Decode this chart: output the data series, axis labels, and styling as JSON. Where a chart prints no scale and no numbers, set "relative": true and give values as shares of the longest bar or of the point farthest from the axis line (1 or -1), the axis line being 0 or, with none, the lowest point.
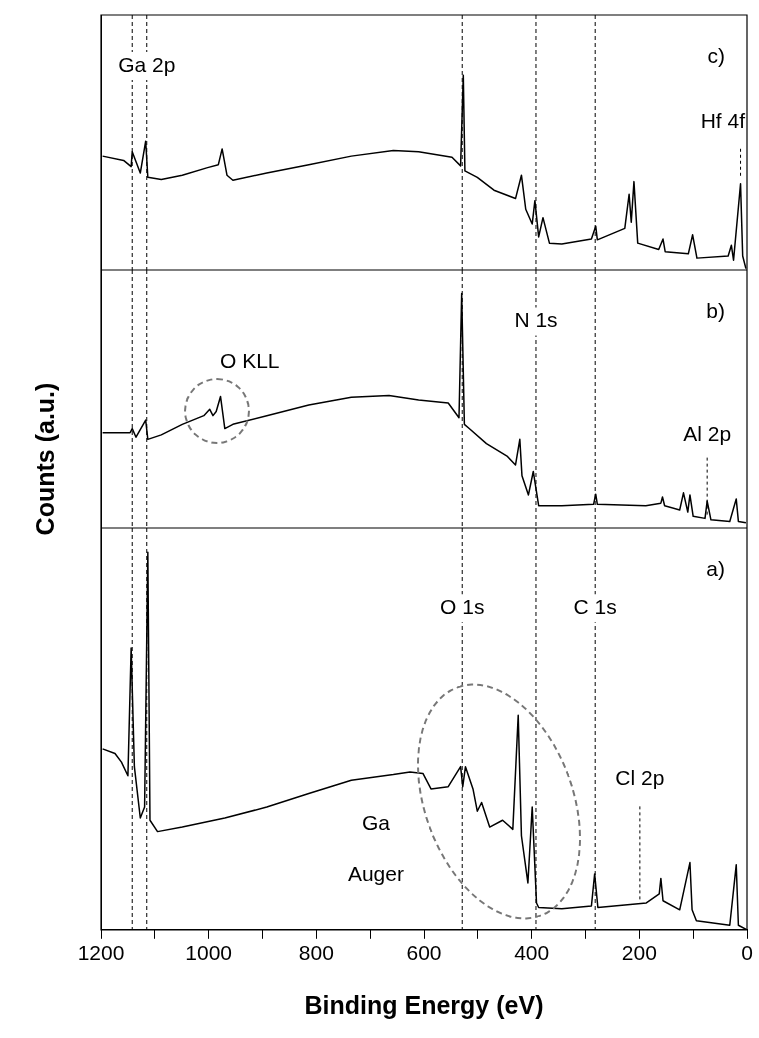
{
  "chart_data": [
    {
      "type": "line",
      "relative": true,
      "color": "#000000",
      "tick_labels": false,
      "xlim": [
        1200,
        0
      ],
      "x": [
        1197,
        1158,
        1144,
        1142,
        1127,
        1117,
        1113,
        1088,
        1049,
        1002,
        982,
        975,
        966,
        955,
        892,
        814,
        735,
        657,
        610,
        548,
        532,
        527,
        524,
        501,
        470,
        430,
        419,
        411,
        399,
        394,
        387,
        379,
        367,
        344,
        289,
        281,
        278,
        227,
        219,
        215,
        210,
        203,
        164,
        156,
        152,
        109,
        101,
        93,
        35,
        29,
        25,
        12,
        8,
        2
      ],
      "values": [
        0.585,
        0.563,
        0.531,
        0.607,
        0.498,
        0.662,
        0.476,
        0.465,
        0.487,
        0.526,
        0.541,
        0.622,
        0.487,
        0.461,
        0.498,
        0.541,
        0.585,
        0.614,
        0.607,
        0.579,
        0.535,
        1,
        0.509,
        0.476,
        0.41,
        0.367,
        0.487,
        0.312,
        0.236,
        0.356,
        0.17,
        0.269,
        0.138,
        0.133,
        0.159,
        0.225,
        0.155,
        0.214,
        0.389,
        0.245,
        0.454,
        0.138,
        0.105,
        0.159,
        0.094,
        0.083,
        0.181,
        0.061,
        0.072,
        0.127,
        0.05,
        0.443,
        0.072,
        0.007
      ],
      "ref_lines": [
        {
          "axis": "x",
          "value": 1142,
          "line_style": "dashed"
        },
        {
          "axis": "x",
          "value": 1115,
          "label": "Ga 2p",
          "line_style": "dashed"
        },
        {
          "axis": "x",
          "value": 529,
          "line_style": "dashed"
        },
        {
          "axis": "x",
          "value": 392,
          "line_style": "dashed"
        },
        {
          "axis": "x",
          "value": 282,
          "line_style": "dashed"
        }
      ],
      "annotations": [
        "c)",
        {
          "text": "Hf 4f",
          "x": 12,
          "y": 0.443
        }
      ]
    },
    {
      "type": "line",
      "relative": true,
      "color": "#000000",
      "tick_labels": false,
      "xlim": [
        1200,
        0
      ],
      "ylabel": "Counts (a.u.)",
      "x": [
        1197,
        1146,
        1142,
        1135,
        1117,
        1113,
        1088,
        1049,
        1009,
        998,
        992,
        986,
        978,
        970,
        955,
        892,
        814,
        735,
        665,
        610,
        555,
        535,
        530,
        525,
        516,
        484,
        445,
        430,
        422,
        418,
        406,
        397,
        387,
        344,
        285,
        281,
        278,
        188,
        160,
        157,
        153,
        125,
        118,
        110,
        106,
        100,
        78,
        74,
        67,
        32,
        20,
        16,
        2
      ],
      "values": [
        0.406,
        0.406,
        0.424,
        0.387,
        0.46,
        0.378,
        0.397,
        0.442,
        0.479,
        0.506,
        0.479,
        0.497,
        0.561,
        0.424,
        0.442,
        0.479,
        0.524,
        0.557,
        0.565,
        0.546,
        0.533,
        0.47,
        1,
        0.442,
        0.424,
        0.36,
        0.305,
        0.269,
        0.378,
        0.223,
        0.141,
        0.241,
        0.095,
        0.095,
        0.101,
        0.144,
        0.101,
        0.095,
        0.106,
        0.132,
        0.095,
        0.077,
        0.15,
        0.068,
        0.141,
        0.05,
        0.041,
        0.115,
        0.035,
        0.028,
        0.124,
        0.028,
        0.022
      ],
      "ref_lines": [
        {
          "axis": "x",
          "value": 1142,
          "line_style": "dashed"
        },
        {
          "axis": "x",
          "value": 1115,
          "line_style": "dashed"
        },
        {
          "axis": "x",
          "value": 529,
          "line_style": "dashed"
        },
        {
          "axis": "x",
          "value": 392,
          "label": "N 1s",
          "line_style": "dashed"
        },
        {
          "axis": "x",
          "value": 282,
          "line_style": "dashed"
        }
      ],
      "annotations": [
        "b)",
        {
          "text": "O KLL",
          "x": 985,
          "y": 0.5
        },
        {
          "text": "Al 2p",
          "x": 74,
          "y": 0.04
        }
      ]
    },
    {
      "type": "line",
      "relative": true,
      "color": "#000000",
      "tick_labels": "x",
      "xlim": [
        1200,
        0
      ],
      "xlabel": "Binding Energy (eV)",
      "xticks": [
        1200,
        {
          "value": 1100,
          "label": null
        },
        1000,
        {
          "value": 900,
          "label": null
        },
        800,
        {
          "value": 700,
          "label": null
        },
        600,
        {
          "value": 500,
          "label": null
        },
        400,
        {
          "value": 300,
          "label": null
        },
        200,
        {
          "value": 100,
          "label": null
        },
        0
      ],
      "x": [
        1197,
        1174,
        1162,
        1150,
        1144,
        1138,
        1127,
        1119,
        1113,
        1109,
        1095,
        1049,
        970,
        892,
        814,
        735,
        657,
        626,
        602,
        587,
        555,
        532,
        528,
        523,
        509,
        501,
        493,
        478,
        454,
        435,
        425,
        419,
        407,
        399,
        391,
        387,
        344,
        289,
        283,
        277,
        187,
        163,
        160,
        156,
        125,
        106,
        102,
        94,
        32,
        20,
        16,
        0
      ],
      "values": [
        0.479,
        0.467,
        0.444,
        0.408,
        0.746,
        0.432,
        0.296,
        0.325,
        1,
        0.29,
        0.26,
        0.272,
        0.296,
        0.325,
        0.361,
        0.396,
        0.411,
        0.418,
        0.414,
        0.373,
        0.379,
        0.432,
        0.379,
        0.432,
        0.373,
        0.314,
        0.337,
        0.272,
        0.29,
        0.266,
        0.568,
        0.249,
        0.124,
        0.325,
        0.071,
        0.059,
        0.056,
        0.063,
        0.148,
        0.059,
        0.071,
        0.095,
        0.136,
        0.077,
        0.053,
        0.178,
        0.053,
        0.024,
        0.012,
        0.172,
        0.012,
        0
      ],
      "ref_lines": [
        {
          "axis": "x",
          "value": 1142,
          "line_style": "dashed"
        },
        {
          "axis": "x",
          "value": 1115,
          "line_style": "dashed"
        },
        {
          "axis": "x",
          "value": 529,
          "label": "O 1s",
          "line_style": "dashed"
        },
        {
          "axis": "x",
          "value": 392,
          "line_style": "dashed"
        },
        {
          "axis": "x",
          "value": 282,
          "label": "C 1s",
          "line_style": "dashed"
        }
      ],
      "annotations": [
        "a)",
        "Ga Auger",
        {
          "text": "Cl 2p",
          "x": 199,
          "y": 0.07
        }
      ]
    }
  ]
}
